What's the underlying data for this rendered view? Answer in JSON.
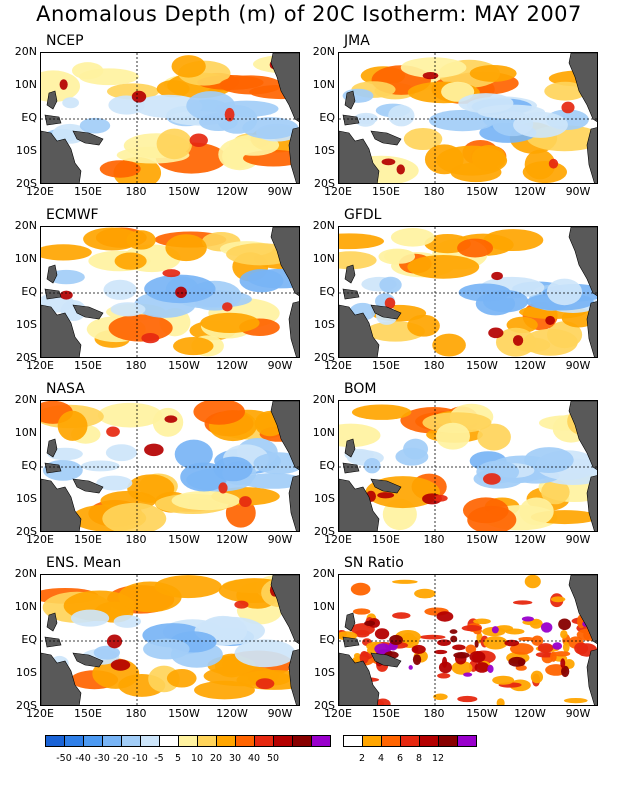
{
  "title": "Anomalous Depth (m) of 20C Isotherm: MAY 2007",
  "lat_labels": [
    "20N",
    "10N",
    "EQ",
    "10S",
    "20S"
  ],
  "lon_labels": [
    "120E",
    "150E",
    "180",
    "150W",
    "120W",
    "90W"
  ],
  "panels": [
    {
      "name": "NCEP",
      "kind": "anom"
    },
    {
      "name": "JMA",
      "kind": "anom"
    },
    {
      "name": "ECMWF",
      "kind": "anom"
    },
    {
      "name": "GFDL",
      "kind": "anom"
    },
    {
      "name": "NASA",
      "kind": "anom"
    },
    {
      "name": "BOM",
      "kind": "anom"
    },
    {
      "name": "ENS. Mean",
      "kind": "anom"
    },
    {
      "name": "SN Ratio",
      "kind": "sn"
    }
  ],
  "anom_colorbar": {
    "colors": [
      "#1a63d6",
      "#2f7fe8",
      "#4d9af2",
      "#78b4f5",
      "#a2cdf7",
      "#cde5fa",
      "#ffffff",
      "#fff2a0",
      "#ffd45a",
      "#ffa500",
      "#ff6400",
      "#e62810",
      "#b40000",
      "#870000",
      "#9900cc"
    ],
    "labels": [
      "-50",
      "-40",
      "-30",
      "-20",
      "-10",
      "-5",
      "5",
      "10",
      "20",
      "30",
      "40",
      "50"
    ]
  },
  "sn_colorbar": {
    "colors": [
      "#ffffff",
      "#ffa500",
      "#ff6400",
      "#e62810",
      "#b40000",
      "#870000",
      "#9900cc"
    ],
    "labels": [
      "2",
      "4",
      "6",
      "8",
      "12"
    ]
  }
}
